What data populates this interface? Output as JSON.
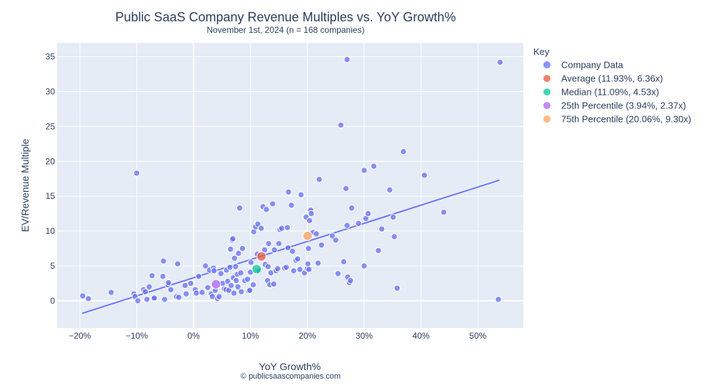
{
  "chart_data": {
    "type": "scatter",
    "title": "Public SaaS Company Revenue Multiples vs. YoY Growth%",
    "subtitle": "November 1st, 2024 (n = 168 companies)",
    "xlabel": "YoY Growth%",
    "ylabel": "EV/Revenue Multiple",
    "credit": "© publicsaascompanies.com",
    "xlim": [
      -24,
      58
    ],
    "ylim": [
      -3.9,
      37
    ],
    "x_ticks": [
      -20,
      -10,
      0,
      10,
      20,
      30,
      40,
      50
    ],
    "x_tick_labels": [
      "−20%",
      "−10%",
      "0%",
      "10%",
      "20%",
      "30%",
      "40%",
      "50%"
    ],
    "y_ticks": [
      0,
      5,
      10,
      15,
      20,
      25,
      30,
      35
    ],
    "y_tick_labels": [
      "0",
      "5",
      "10",
      "15",
      "20",
      "25",
      "30",
      "35"
    ],
    "grid": true,
    "legend_title": "Key",
    "legend_position": "right",
    "trendline": {
      "x": [
        -19.6,
        53.8
      ],
      "y": [
        -1.8,
        17.3
      ],
      "color": "#636efa"
    },
    "series": [
      {
        "name": "Company Data",
        "color": "#636efa",
        "opacity": 0.75,
        "points": [
          [
            -19.5,
            0.7
          ],
          [
            -18.5,
            0.3
          ],
          [
            -14.5,
            1.2
          ],
          [
            -10.5,
            1.0
          ],
          [
            -10.3,
            0.6
          ],
          [
            -10.0,
            18.3
          ],
          [
            -9.8,
            0.0
          ],
          [
            -8.8,
            1.6
          ],
          [
            -8.5,
            1.3
          ],
          [
            -8.2,
            0.2
          ],
          [
            -7.8,
            2.0
          ],
          [
            -7.3,
            3.6
          ],
          [
            -7.0,
            0.3
          ],
          [
            -6.9,
            0.4
          ],
          [
            -5.4,
            3.5
          ],
          [
            -5.3,
            5.7
          ],
          [
            -5.1,
            0.2
          ],
          [
            -4.5,
            2.3
          ],
          [
            -4.4,
            2.6
          ],
          [
            -4.0,
            1.6
          ],
          [
            -3.0,
            0.6
          ],
          [
            -2.8,
            5.3
          ],
          [
            -2.6,
            0.5
          ],
          [
            -1.5,
            2.2
          ],
          [
            -1.3,
            1.0
          ],
          [
            -0.5,
            2.5
          ],
          [
            0.3,
            1.6
          ],
          [
            0.5,
            1.1
          ],
          [
            0.9,
            3.5
          ],
          [
            1.5,
            1.2
          ],
          [
            2.1,
            5.0
          ],
          [
            2.5,
            1.9
          ],
          [
            2.8,
            4.4
          ],
          [
            3.1,
            1.0
          ],
          [
            3.3,
            0.6
          ],
          [
            3.5,
            4.7
          ],
          [
            3.6,
            4.3
          ],
          [
            3.8,
            1.5
          ],
          [
            4.2,
            0.3
          ],
          [
            4.5,
            0.6
          ],
          [
            4.8,
            3.9
          ],
          [
            5.1,
            2.5
          ],
          [
            5.4,
            1.7
          ],
          [
            5.7,
            1.6
          ],
          [
            5.8,
            4.4
          ],
          [
            6.0,
            2.8
          ],
          [
            6.2,
            1.5
          ],
          [
            6.4,
            4.8
          ],
          [
            6.5,
            7.4
          ],
          [
            6.6,
            2.2
          ],
          [
            6.8,
            8.7
          ],
          [
            6.9,
            8.9
          ],
          [
            7.0,
            3.3
          ],
          [
            7.1,
            1.1
          ],
          [
            7.2,
            6.1
          ],
          [
            7.4,
            4.9
          ],
          [
            7.5,
            2.9
          ],
          [
            7.7,
            3.8
          ],
          [
            7.8,
            2.0
          ],
          [
            7.9,
            6.8
          ],
          [
            8.1,
            13.3
          ],
          [
            8.3,
            4.0
          ],
          [
            8.4,
            1.3
          ],
          [
            8.6,
            7.5
          ],
          [
            9.0,
            2.9
          ],
          [
            9.5,
            3.1
          ],
          [
            9.7,
            1.4
          ],
          [
            9.9,
            1.5
          ],
          [
            10.0,
            4.1
          ],
          [
            10.1,
            5.5
          ],
          [
            10.5,
            2.3
          ],
          [
            10.6,
            9.9
          ],
          [
            10.9,
            10.6
          ],
          [
            11.2,
            6.7
          ],
          [
            11.3,
            11.0
          ],
          [
            11.5,
            4.3
          ],
          [
            11.9,
            10.4
          ],
          [
            12.2,
            13.5
          ],
          [
            12.5,
            7.3
          ],
          [
            12.6,
            5.2
          ],
          [
            12.8,
            13.1
          ],
          [
            13.0,
            2.9
          ],
          [
            13.1,
            4.9
          ],
          [
            13.2,
            8.2
          ],
          [
            13.4,
            2.3
          ],
          [
            13.6,
            4.0
          ],
          [
            13.9,
            13.9
          ],
          [
            14.1,
            2.4
          ],
          [
            14.2,
            7.3
          ],
          [
            14.5,
            4.3
          ],
          [
            14.8,
            4.6
          ],
          [
            15.0,
            8.2
          ],
          [
            15.2,
            10.2
          ],
          [
            15.5,
            10.4
          ],
          [
            16.0,
            4.7
          ],
          [
            16.3,
            4.8
          ],
          [
            16.5,
            10.5
          ],
          [
            16.6,
            7.6
          ],
          [
            16.7,
            15.6
          ],
          [
            17.2,
            13.7
          ],
          [
            17.4,
            7.1
          ],
          [
            17.6,
            4.3
          ],
          [
            18.0,
            5.8
          ],
          [
            18.3,
            6.0
          ],
          [
            18.7,
            4.5
          ],
          [
            18.9,
            15.2
          ],
          [
            19.5,
            4.0
          ],
          [
            19.8,
            12.0
          ],
          [
            20.0,
            4.6
          ],
          [
            20.1,
            5.3
          ],
          [
            20.2,
            7.5
          ],
          [
            20.3,
            4.5
          ],
          [
            20.4,
            11.5
          ],
          [
            20.6,
            13.0
          ],
          [
            20.7,
            12.5
          ],
          [
            21.0,
            9.8
          ],
          [
            21.6,
            9.6
          ],
          [
            21.9,
            5.4
          ],
          [
            22.1,
            17.4
          ],
          [
            22.5,
            8.0
          ],
          [
            24.4,
            9.3
          ],
          [
            25.0,
            8.7
          ],
          [
            25.4,
            3.9
          ],
          [
            25.9,
            25.2
          ],
          [
            26.4,
            5.6
          ],
          [
            26.8,
            16.1
          ],
          [
            27.0,
            34.6
          ],
          [
            27.0,
            10.8
          ],
          [
            27.1,
            3.4
          ],
          [
            27.4,
            2.6
          ],
          [
            27.6,
            2.9
          ],
          [
            27.8,
            13.3
          ],
          [
            29.0,
            11.1
          ],
          [
            30.0,
            5.0
          ],
          [
            30.0,
            18.7
          ],
          [
            30.3,
            11.8
          ],
          [
            30.7,
            12.5
          ],
          [
            31.7,
            19.3
          ],
          [
            32.5,
            7.2
          ],
          [
            33.1,
            10.3
          ],
          [
            34.5,
            15.9
          ],
          [
            35.1,
            12.0
          ],
          [
            35.3,
            9.2
          ],
          [
            35.8,
            1.8
          ],
          [
            36.9,
            21.4
          ],
          [
            40.6,
            18.0
          ],
          [
            44.0,
            12.7
          ],
          [
            53.6,
            0.2
          ],
          [
            53.9,
            34.2
          ]
        ]
      },
      {
        "name": "Average (11.93%, 6.36x)",
        "color": "#ef553b",
        "opacity": 0.75,
        "points": [
          [
            11.93,
            6.36
          ]
        ]
      },
      {
        "name": "Median (11.09%, 4.53x)",
        "color": "#00cc96",
        "opacity": 0.75,
        "points": [
          [
            11.09,
            4.53
          ]
        ]
      },
      {
        "name": "25th Percentile (3.94%, 2.37x)",
        "color": "#ab63fa",
        "opacity": 0.75,
        "points": [
          [
            3.94,
            2.37
          ]
        ]
      },
      {
        "name": "75th Percentile (20.06%, 9.30x)",
        "color": "#ffa15a",
        "opacity": 0.75,
        "points": [
          [
            20.06,
            9.3
          ]
        ]
      }
    ]
  }
}
